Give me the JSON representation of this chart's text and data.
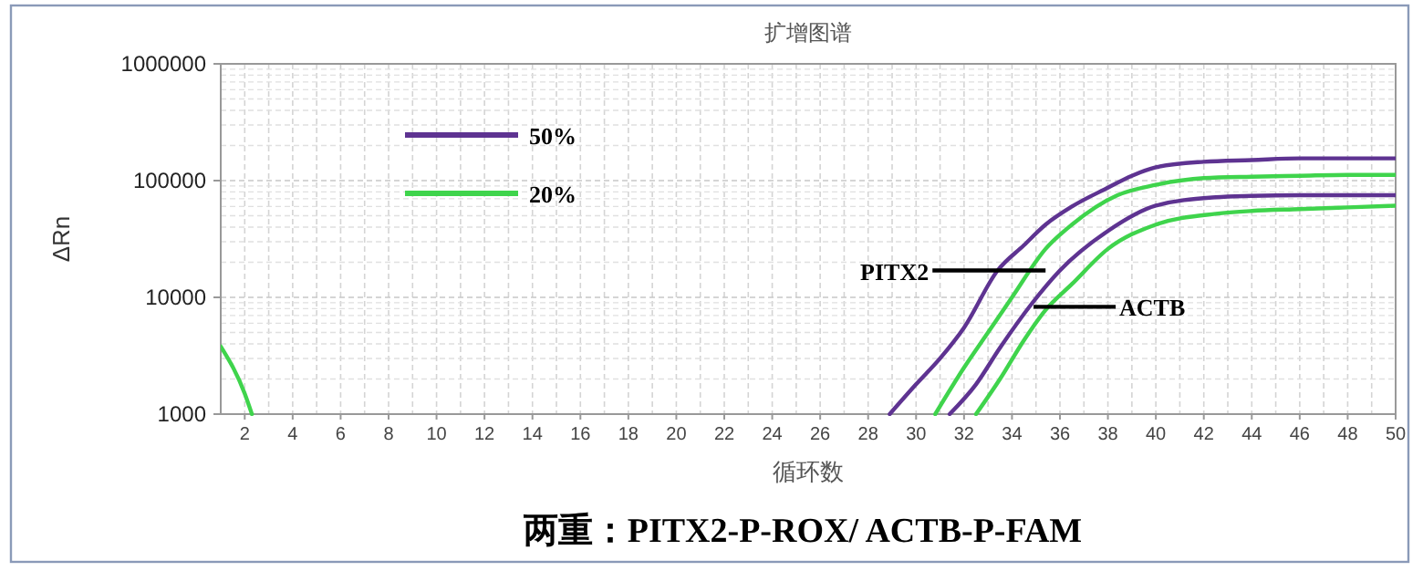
{
  "chart_data": {
    "type": "line",
    "title": "扩增图谱",
    "xlabel": "循环数",
    "ylabel": "ΔRn",
    "log": "y",
    "xlim": [
      1,
      50
    ],
    "ylim": [
      1000,
      1000000
    ],
    "xticks": [
      2,
      4,
      6,
      8,
      10,
      12,
      14,
      16,
      18,
      20,
      22,
      24,
      26,
      28,
      30,
      32,
      34,
      36,
      38,
      40,
      42,
      44,
      46,
      48,
      50
    ],
    "yticks": [
      1000,
      10000,
      100000,
      1000000
    ],
    "grid": true,
    "legend": "top left",
    "marker": "none",
    "line_style": "solid",
    "series": [
      {
        "name": "50%",
        "color": "#5e3391",
        "x": [
          28.9,
          30,
          31,
          32,
          33.4,
          34.5,
          35.4,
          36.5,
          38,
          39,
          40,
          42,
          44,
          46,
          48,
          50
        ],
        "values": [
          1000,
          1800,
          3000,
          5500,
          17000,
          28000,
          42000,
          60000,
          87000,
          110000,
          130000,
          145000,
          150000,
          155000,
          155000,
          155000
        ]
      },
      {
        "name": "20%",
        "color": "#3fd44c",
        "x": [
          1,
          2,
          2.3,
          2.5,
          30.8,
          32,
          33,
          34,
          35.4,
          36.5,
          38.4,
          40,
          42,
          44,
          46,
          48,
          50
        ],
        "values": [
          3800,
          1500,
          1000,
          null,
          1000,
          2500,
          5000,
          10000,
          26000,
          42000,
          75000,
          92000,
          105000,
          108000,
          110000,
          112000,
          112000
        ]
      },
      {
        "color": "#5e3391",
        "x": [
          31.4,
          32.5,
          33.5,
          34.8,
          36,
          38,
          40,
          42.5,
          44,
          46,
          48,
          50
        ],
        "values": [
          1000,
          1800,
          3700,
          8700,
          17000,
          37000,
          61000,
          72000,
          74000,
          75000,
          75000,
          75000
        ]
      },
      {
        "color": "#3fd44c",
        "x": [
          32.5,
          33.5,
          34.5,
          35.4,
          36.5,
          38,
          40,
          42.5,
          44,
          46,
          48,
          50
        ],
        "values": [
          1000,
          2000,
          4300,
          7800,
          13000,
          26000,
          42000,
          52000,
          55000,
          57000,
          59000,
          61000
        ]
      }
    ],
    "annotations": [
      {
        "text": "PITX2",
        "x": 35.4,
        "y": 17000
      },
      {
        "text": "ACTB",
        "x": 34.9,
        "y": 8300
      },
      "两重：PITX2-P-ROX/ ACTB-P-FAM"
    ]
  }
}
